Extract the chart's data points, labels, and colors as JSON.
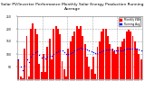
{
  "title": "Solar PV/Inverter Performance Monthly Solar Energy Production Running Average",
  "title_fontsize": 3.2,
  "background_color": "#ffffff",
  "plot_bg_color": "#ffffff",
  "grid_color": "#aaaaaa",
  "bar_color": "#ff0000",
  "avg_color": "#0000ff",
  "tick_fontsize": 2.2,
  "label_fontsize": 2.5,
  "values": [
    80,
    10,
    5,
    120,
    170,
    10,
    200,
    220,
    200,
    180,
    60,
    30,
    100,
    30,
    130,
    160,
    80,
    200,
    210,
    200,
    180,
    70,
    40,
    10,
    120,
    150,
    170,
    190,
    210,
    200,
    210,
    170,
    140,
    90,
    50,
    40,
    90,
    20,
    130,
    150,
    190,
    200,
    200,
    170,
    140,
    120,
    110,
    100,
    130,
    130,
    150,
    160,
    190,
    195,
    190,
    170,
    150,
    120,
    100,
    80
  ],
  "running_avg": [
    80,
    50,
    35,
    55,
    77,
    68,
    88,
    101,
    108,
    110,
    98,
    84,
    88,
    82,
    88,
    94,
    92,
    100,
    107,
    112,
    115,
    113,
    108,
    99,
    101,
    104,
    108,
    114,
    119,
    121,
    124,
    123,
    122,
    119,
    114,
    109,
    107,
    102,
    104,
    107,
    111,
    115,
    117,
    117,
    117,
    117,
    116,
    115,
    115,
    115,
    116,
    117,
    120,
    121,
    122,
    121,
    121,
    120,
    118,
    116
  ],
  "ylim": [
    0,
    250
  ],
  "ytick_values": [
    50,
    100,
    150,
    200,
    250
  ],
  "ytick_labels": [
    "50",
    "100",
    "150",
    "200",
    "250"
  ],
  "n_bars": 60,
  "legend_monthly_color": "#ff0000",
  "legend_avg_color": "#0000ff",
  "legend_monthly_label": "Monthly kWh",
  "legend_avg_label": "Running Avg"
}
